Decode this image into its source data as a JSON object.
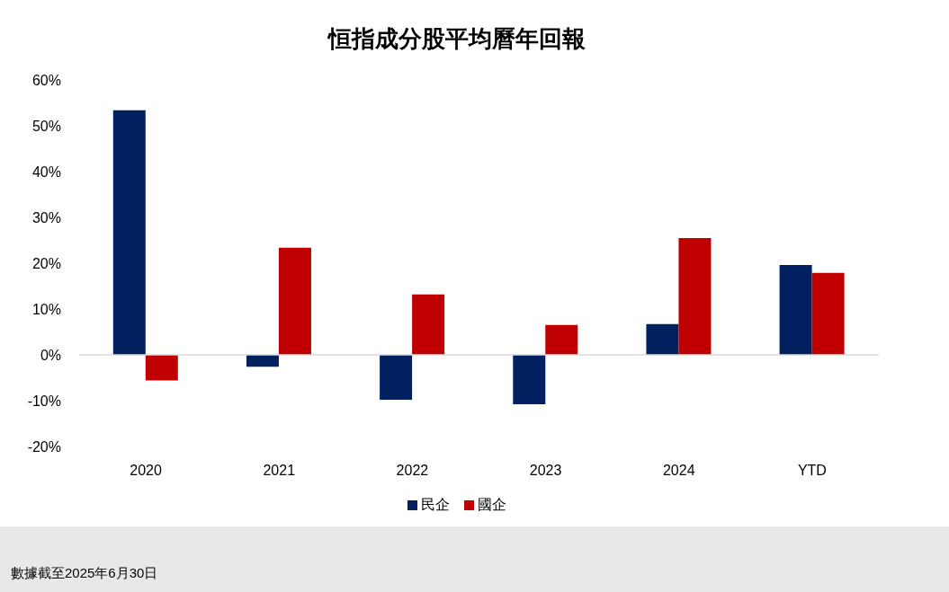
{
  "chart_data": {
    "type": "bar",
    "title": "恒指成分股平均曆年回報",
    "categories": [
      "2020",
      "2021",
      "2022",
      "2023",
      "2024",
      "YTD"
    ],
    "series": [
      {
        "name": "民企",
        "color": "#002060",
        "values": [
          53.4,
          -2.6,
          -9.8,
          -10.8,
          6.7,
          19.6
        ]
      },
      {
        "name": "國企",
        "color": "#c00000",
        "values": [
          -5.6,
          23.4,
          13.2,
          6.5,
          25.5,
          17.9
        ]
      }
    ],
    "ylim": [
      -20,
      60
    ],
    "yticks": [
      {
        "value": -20,
        "label": "-20%"
      },
      {
        "value": -10,
        "label": "-10%"
      },
      {
        "value": 0,
        "label": "0%"
      },
      {
        "value": 10,
        "label": "10%"
      },
      {
        "value": 20,
        "label": "20%"
      },
      {
        "value": 30,
        "label": "30%"
      },
      {
        "value": 40,
        "label": "40%"
      },
      {
        "value": 50,
        "label": "50%"
      },
      {
        "value": 60,
        "label": "60%"
      }
    ],
    "legend": "bottom",
    "annotations": [
      "數據截至2025年6月30日"
    ]
  }
}
